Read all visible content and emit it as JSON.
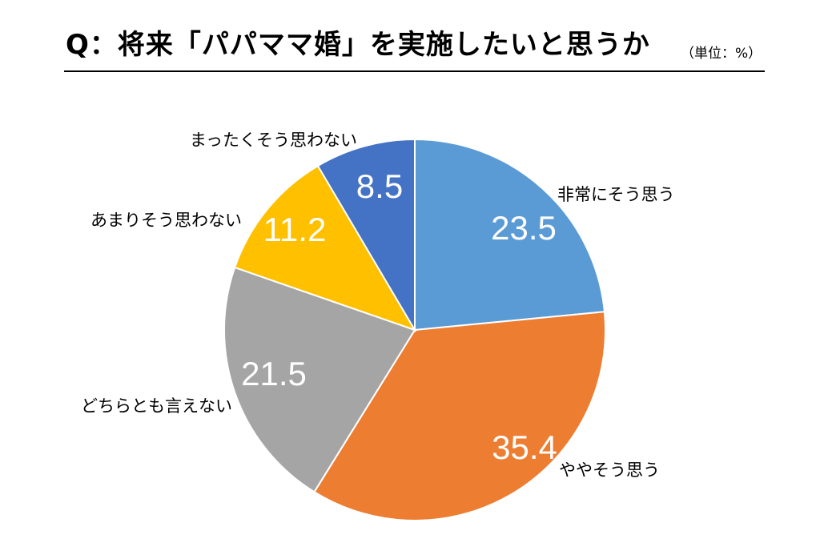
{
  "title": "Q：将来「パパママ婚」を実施したいと思うか",
  "unit": "（単位：%）",
  "chart_data": {
    "type": "pie",
    "start_angle_deg": 0,
    "direction": "clockwise",
    "slices": [
      {
        "label": "非常にそう思う",
        "value": 23.5,
        "color": "#5B9BD5"
      },
      {
        "label": "ややそう思う",
        "value": 35.4,
        "color": "#ED7D31"
      },
      {
        "label": "どちらとも言えない",
        "value": 21.5,
        "color": "#A5A5A5"
      },
      {
        "label": "あまりそう思わない",
        "value": 11.2,
        "color": "#FFC000"
      },
      {
        "label": "まったくそう思わない",
        "value": 8.5,
        "color": "#4472C4"
      }
    ]
  }
}
